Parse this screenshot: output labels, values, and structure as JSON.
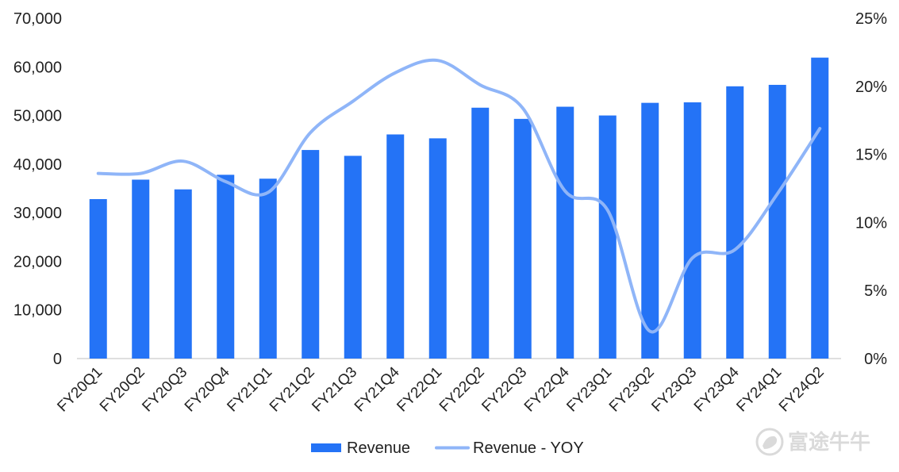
{
  "chart_data": {
    "type": "bar",
    "title": "",
    "xlabel": "",
    "ylabel": "",
    "categories": [
      "FY20Q1",
      "FY20Q2",
      "FY20Q3",
      "FY20Q4",
      "FY21Q1",
      "FY21Q2",
      "FY21Q3",
      "FY21Q4",
      "FY22Q1",
      "FY22Q2",
      "FY22Q3",
      "FY22Q4",
      "FY23Q1",
      "FY23Q2",
      "FY23Q3",
      "FY23Q4",
      "FY24Q1",
      "FY24Q2"
    ],
    "series": [
      {
        "name": "Revenue",
        "type": "bar",
        "axis": "left",
        "color": "#2473F6",
        "values": [
          32800,
          36800,
          34800,
          37800,
          37000,
          42900,
          41700,
          46100,
          45300,
          51600,
          49300,
          51800,
          50000,
          52600,
          52700,
          56000,
          56300,
          61900
        ]
      },
      {
        "name": "Revenue - YOY",
        "type": "line",
        "axis": "right",
        "color": "#8FB5F8",
        "values": [
          0.136,
          0.136,
          0.145,
          0.13,
          0.122,
          0.166,
          0.189,
          0.21,
          0.219,
          0.201,
          0.184,
          0.123,
          0.109,
          0.02,
          0.074,
          0.08,
          0.121,
          0.169
        ]
      }
    ],
    "y_left": {
      "ylim": [
        0,
        70000
      ],
      "tick_values": [
        0,
        10000,
        20000,
        30000,
        40000,
        50000,
        60000,
        70000
      ],
      "tick_labels": [
        "0",
        "10,000",
        "20,000",
        "30,000",
        "40,000",
        "50,000",
        "60,000",
        "70,000"
      ]
    },
    "y_right": {
      "ylim": [
        0,
        0.25
      ],
      "tick_values": [
        0,
        0.05,
        0.1,
        0.15,
        0.2,
        0.25
      ],
      "tick_labels": [
        "0%",
        "5%",
        "10%",
        "15%",
        "20%",
        "25%"
      ]
    },
    "grid": false,
    "legend": {
      "position": "bottom-center",
      "entries": [
        "Revenue",
        "Revenue - YOY"
      ]
    },
    "watermark": "富途牛牛"
  }
}
